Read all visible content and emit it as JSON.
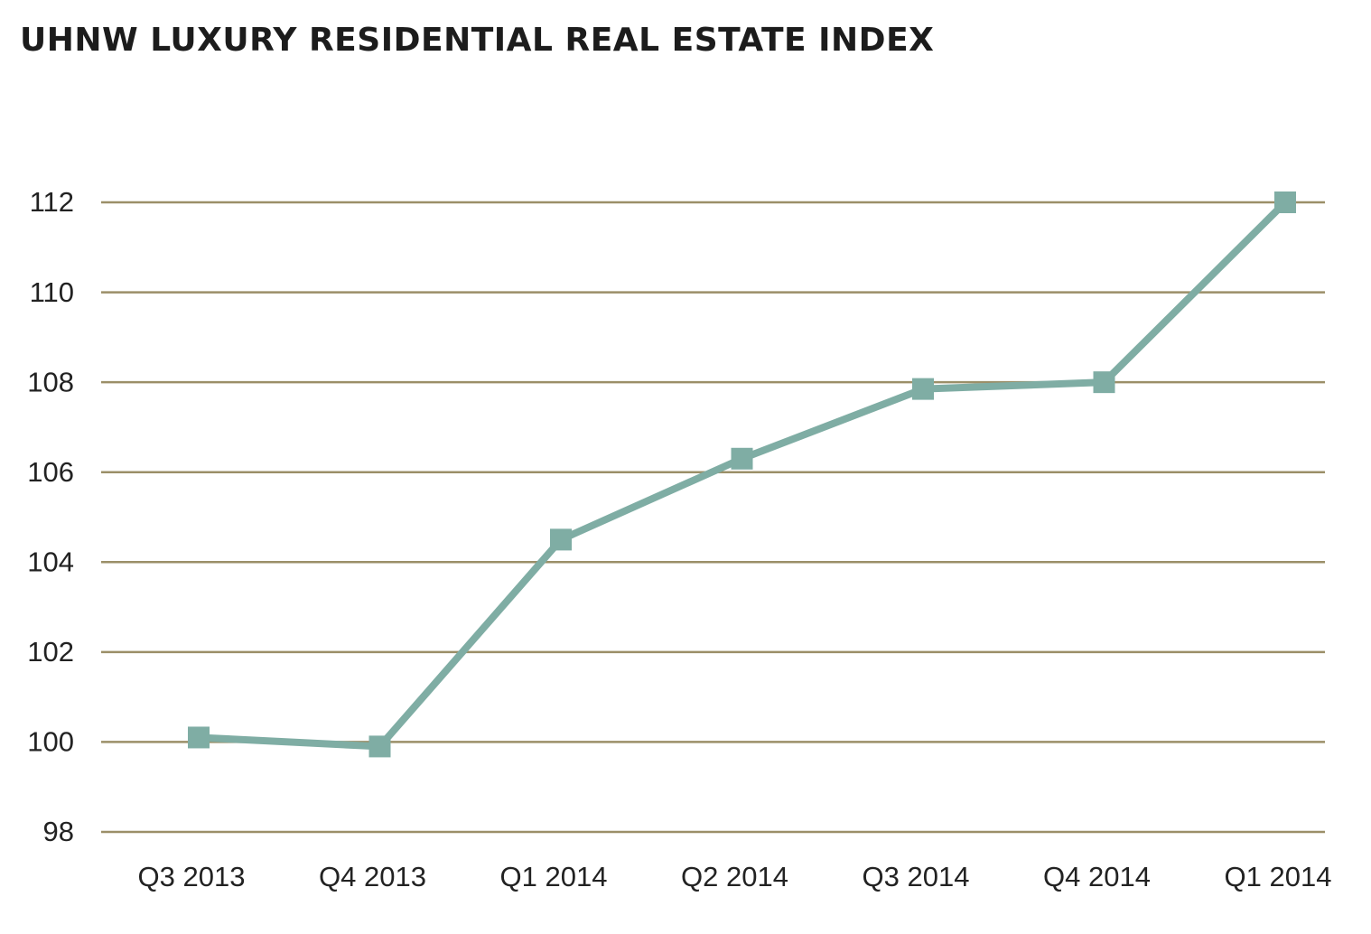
{
  "chart_data": {
    "type": "line",
    "title": "UHNW LUXURY RESIDENTIAL REAL ESTATE INDEX",
    "xlabel": "",
    "ylabel": "",
    "categories": [
      "Q3 2013",
      "Q4 2013",
      "Q1 2014",
      "Q2 2014",
      "Q3 2014",
      "Q4 2014",
      "Q1 2014"
    ],
    "series": [
      {
        "values": [
          100.1,
          99.9,
          104.5,
          106.3,
          107.85,
          108.0,
          112.0
        ]
      }
    ],
    "ylim": [
      98,
      112
    ],
    "yticks": [
      98,
      100,
      102,
      104,
      106,
      108,
      110,
      112
    ],
    "grid": true,
    "legend": "none",
    "colors": {
      "line": "#7fada4",
      "marker": "#7fada4",
      "gridline": "#9b8f68",
      "text": "#222222"
    },
    "marker": "square"
  }
}
